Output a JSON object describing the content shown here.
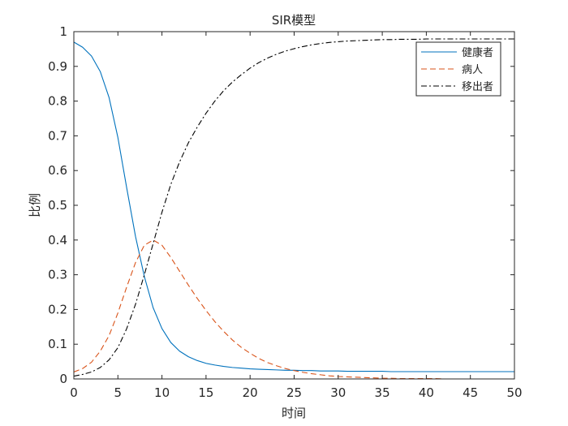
{
  "chart_data": {
    "type": "line",
    "title": "SIR模型",
    "xlabel": "时间",
    "ylabel": "比例",
    "xlim": [
      0,
      50
    ],
    "ylim": [
      0,
      1
    ],
    "xticks": [
      0,
      5,
      10,
      15,
      20,
      25,
      30,
      35,
      40,
      45,
      50
    ],
    "xtick_labels": [
      "0",
      "5",
      "10",
      "15",
      "20",
      "25",
      "30",
      "35",
      "40",
      "45",
      "50"
    ],
    "yticks": [
      0,
      0.1,
      0.2,
      0.3,
      0.4,
      0.5,
      0.6,
      0.7,
      0.8,
      0.9,
      1
    ],
    "ytick_labels": [
      "0",
      "0.1",
      "0.2",
      "0.3",
      "0.4",
      "0.5",
      "0.6",
      "0.7",
      "0.8",
      "0.9",
      "1"
    ],
    "grid": false,
    "legend_position": "top-right",
    "x": [
      0,
      1,
      2,
      3,
      4,
      5,
      6,
      7,
      8,
      9,
      10,
      11,
      12,
      13,
      14,
      15,
      16,
      17,
      18,
      19,
      20,
      21,
      22,
      23,
      24,
      25,
      26,
      27,
      28,
      29,
      30,
      31,
      32,
      33,
      34,
      35,
      36,
      37,
      38,
      39,
      40,
      41,
      42,
      43,
      44,
      45,
      46,
      47,
      48,
      49,
      50
    ],
    "series": [
      {
        "name": "健康者",
        "color": "#0072BD",
        "dash": "solid",
        "values": [
          0.97,
          0.955,
          0.93,
          0.885,
          0.81,
          0.695,
          0.55,
          0.41,
          0.295,
          0.205,
          0.145,
          0.105,
          0.08,
          0.064,
          0.053,
          0.045,
          0.04,
          0.036,
          0.033,
          0.031,
          0.029,
          0.028,
          0.027,
          0.026,
          0.025,
          0.025,
          0.024,
          0.024,
          0.023,
          0.023,
          0.023,
          0.022,
          0.022,
          0.022,
          0.022,
          0.022,
          0.021,
          0.021,
          0.021,
          0.021,
          0.021,
          0.021,
          0.021,
          0.021,
          0.021,
          0.021,
          0.021,
          0.021,
          0.021,
          0.021,
          0.021
        ]
      },
      {
        "name": "病人",
        "color": "#D95319",
        "dash": "dashed",
        "values": [
          0.02,
          0.03,
          0.048,
          0.08,
          0.125,
          0.19,
          0.265,
          0.335,
          0.385,
          0.4,
          0.385,
          0.35,
          0.31,
          0.27,
          0.232,
          0.197,
          0.165,
          0.137,
          0.112,
          0.091,
          0.074,
          0.059,
          0.047,
          0.038,
          0.03,
          0.024,
          0.019,
          0.015,
          0.012,
          0.009,
          0.007,
          0.006,
          0.005,
          0.004,
          0.003,
          0.002,
          0.002,
          0.001,
          0.001,
          0.001,
          0.001,
          0.001,
          0.0,
          0.0,
          0.0,
          0.0,
          0.0,
          0.0,
          0.0,
          0.0,
          0.0
        ]
      },
      {
        "name": "移出者",
        "color": "#000000",
        "dash": "dashdot",
        "values": [
          0.008,
          0.013,
          0.02,
          0.033,
          0.055,
          0.09,
          0.145,
          0.215,
          0.3,
          0.39,
          0.48,
          0.56,
          0.625,
          0.68,
          0.725,
          0.765,
          0.8,
          0.83,
          0.855,
          0.876,
          0.895,
          0.911,
          0.924,
          0.935,
          0.944,
          0.951,
          0.957,
          0.962,
          0.966,
          0.969,
          0.971,
          0.973,
          0.974,
          0.975,
          0.976,
          0.977,
          0.977,
          0.978,
          0.978,
          0.978,
          0.979,
          0.979,
          0.979,
          0.979,
          0.979,
          0.979,
          0.979,
          0.979,
          0.979,
          0.979,
          0.979
        ]
      }
    ]
  }
}
